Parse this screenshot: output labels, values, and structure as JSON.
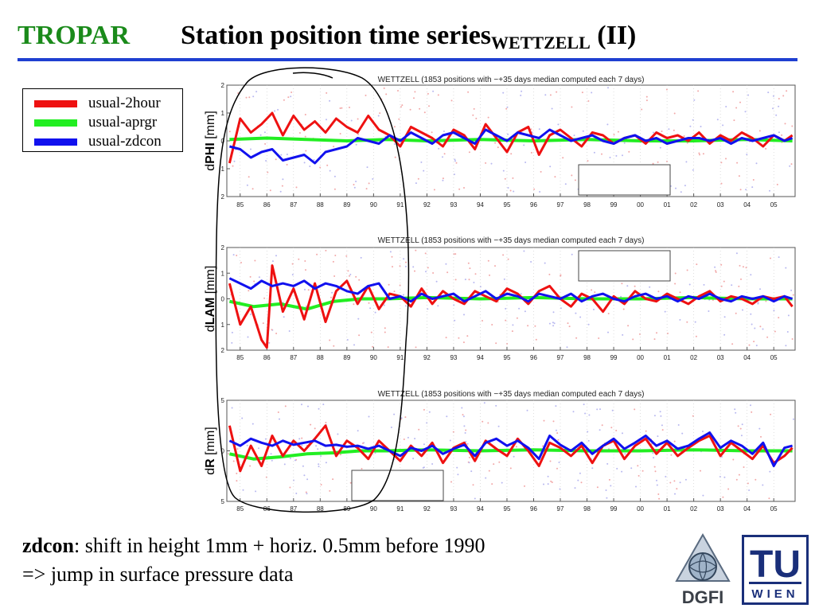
{
  "slide": {
    "brand": "TROPAR",
    "title_main": "Station position time series",
    "title_sub": "WETTZELL",
    "title_suffix": " (II)",
    "caption_bold": "zdcon",
    "caption_line1_rest": ": shift in height 1mm + horiz. 0.5mm before 1990",
    "caption_line2": "=> jump in surface pressure data"
  },
  "legend": [
    {
      "label": "usual-2hour",
      "color": "#ee1111"
    },
    {
      "label": "usual-aprgr",
      "color": "#22ee22"
    },
    {
      "label": "usual-zdcon",
      "color": "#1111ee"
    }
  ],
  "logos": {
    "dgfi": "DGFI",
    "tu_top": "TU",
    "tu_bottom": "WIEN"
  },
  "colors": {
    "brand": "#1a8a1a",
    "rule": "#1f3fd1",
    "tu": "#1a2f7a"
  },
  "chart_data": [
    {
      "type": "line",
      "title": "WETTZELL (1853 positions with −+35 days median computed each 7 days)",
      "ylabel_prefix": "d",
      "ylabel_bold": "PHI",
      "ylabel_unit": " [mm]",
      "xticks": [
        "85",
        "86",
        "87",
        "88",
        "89",
        "90",
        "91",
        "92",
        "93",
        "94",
        "95",
        "96",
        "97",
        "98",
        "99",
        "00",
        "01",
        "02",
        "03",
        "04",
        "05"
      ],
      "yticks": [
        "2",
        "1",
        "0",
        "1",
        "2"
      ],
      "ylim": [
        -2,
        2
      ],
      "xlim": [
        1984.5,
        2005.8
      ],
      "series": [
        {
          "name": "usual-2hour",
          "color": "#ee1111",
          "x": [
            1984.6,
            1985.0,
            1985.4,
            1985.8,
            1986.2,
            1986.6,
            1987.0,
            1987.4,
            1987.8,
            1988.2,
            1988.6,
            1989.0,
            1989.4,
            1989.8,
            1990.2,
            1990.6,
            1991.0,
            1991.4,
            1991.8,
            1992.2,
            1992.6,
            1993.0,
            1993.4,
            1993.8,
            1994.2,
            1994.6,
            1995.0,
            1995.4,
            1995.8,
            1996.2,
            1996.6,
            1997.0,
            1997.4,
            1997.8,
            1998.2,
            1998.6,
            1999.0,
            1999.4,
            1999.8,
            2000.2,
            2000.6,
            2001.0,
            2001.4,
            2001.8,
            2002.2,
            2002.6,
            2003.0,
            2003.4,
            2003.8,
            2004.2,
            2004.6,
            2005.0,
            2005.4,
            2005.7
          ],
          "values": [
            -0.8,
            0.8,
            0.3,
            0.6,
            1.0,
            0.2,
            0.9,
            0.4,
            0.7,
            0.3,
            0.8,
            0.5,
            0.3,
            0.9,
            0.4,
            0.2,
            -0.2,
            0.5,
            0.3,
            0.1,
            -0.2,
            0.4,
            0.2,
            -0.3,
            0.6,
            0.1,
            -0.4,
            0.3,
            0.5,
            -0.5,
            0.2,
            0.4,
            0.1,
            -0.2,
            0.3,
            0.2,
            -0.1,
            0.1,
            0.2,
            -0.1,
            0.3,
            0.1,
            0.2,
            0.0,
            0.3,
            -0.1,
            0.2,
            0.0,
            0.3,
            0.1,
            -0.2,
            0.2,
            0.0,
            0.2
          ]
        },
        {
          "name": "usual-aprgr",
          "color": "#22ee22",
          "x": [
            1984.6,
            1986.0,
            1987.5,
            1989.0,
            1990.5,
            1992.0,
            1994.0,
            1996.0,
            1998.0,
            2000.0,
            2002.0,
            2004.0,
            2005.7
          ],
          "values": [
            0.05,
            0.1,
            0.05,
            0.0,
            0.05,
            0.0,
            0.05,
            0.0,
            0.05,
            0.0,
            0.0,
            0.05,
            0.0
          ]
        },
        {
          "name": "usual-zdcon",
          "color": "#1111ee",
          "x": [
            1984.6,
            1985.0,
            1985.4,
            1985.8,
            1986.2,
            1986.6,
            1987.0,
            1987.4,
            1987.8,
            1988.2,
            1988.6,
            1989.0,
            1989.4,
            1989.8,
            1990.2,
            1990.6,
            1991.0,
            1991.4,
            1991.8,
            1992.2,
            1992.6,
            1993.0,
            1993.4,
            1993.8,
            1994.2,
            1994.6,
            1995.0,
            1995.4,
            1995.8,
            1996.2,
            1996.6,
            1997.0,
            1997.4,
            1997.8,
            1998.2,
            1998.6,
            1999.0,
            1999.4,
            1999.8,
            2000.2,
            2000.6,
            2001.0,
            2001.4,
            2001.8,
            2002.2,
            2002.6,
            2003.0,
            2003.4,
            2003.8,
            2004.2,
            2004.6,
            2005.0,
            2005.4,
            2005.7
          ],
          "values": [
            -0.2,
            -0.3,
            -0.6,
            -0.4,
            -0.3,
            -0.7,
            -0.6,
            -0.5,
            -0.8,
            -0.4,
            -0.3,
            -0.2,
            0.1,
            0.0,
            -0.1,
            0.2,
            0.0,
            0.3,
            0.1,
            -0.1,
            0.2,
            0.3,
            0.1,
            -0.1,
            0.4,
            0.2,
            0.0,
            0.3,
            0.2,
            0.1,
            0.4,
            0.2,
            0.0,
            0.1,
            0.2,
            0.0,
            -0.1,
            0.1,
            0.2,
            0.0,
            0.1,
            -0.1,
            0.0,
            0.1,
            0.1,
            0.0,
            0.1,
            -0.1,
            0.1,
            0.0,
            0.1,
            0.2,
            0.0,
            0.1
          ]
        }
      ]
    },
    {
      "type": "line",
      "title": "WETTZELL (1853 positions with −+35 days median computed each 7 days)",
      "ylabel_prefix": "d",
      "ylabel_bold": "LAM",
      "ylabel_unit": " [mm]",
      "xticks": [
        "85",
        "86",
        "87",
        "88",
        "89",
        "90",
        "91",
        "92",
        "93",
        "94",
        "95",
        "96",
        "97",
        "98",
        "99",
        "00",
        "01",
        "02",
        "03",
        "04",
        "05"
      ],
      "yticks": [
        "2",
        "1",
        "0",
        "1",
        "2"
      ],
      "ylim": [
        -2,
        2
      ],
      "xlim": [
        1984.5,
        2005.8
      ],
      "series": [
        {
          "name": "usual-2hour",
          "color": "#ee1111",
          "x": [
            1984.6,
            1985.0,
            1985.4,
            1985.8,
            1986.0,
            1986.2,
            1986.6,
            1987.0,
            1987.4,
            1987.8,
            1988.2,
            1988.6,
            1989.0,
            1989.4,
            1989.8,
            1990.2,
            1990.6,
            1991.0,
            1991.4,
            1991.8,
            1992.2,
            1992.6,
            1993.0,
            1993.4,
            1993.8,
            1994.2,
            1994.6,
            1995.0,
            1995.4,
            1995.8,
            1996.2,
            1996.6,
            1997.0,
            1997.4,
            1997.8,
            1998.2,
            1998.6,
            1999.0,
            1999.4,
            1999.8,
            2000.2,
            2000.6,
            2001.0,
            2001.4,
            2001.8,
            2002.2,
            2002.6,
            2003.0,
            2003.4,
            2003.8,
            2004.2,
            2004.6,
            2005.0,
            2005.4,
            2005.7
          ],
          "values": [
            0.6,
            -1.0,
            -0.3,
            -1.6,
            -1.9,
            1.3,
            -0.5,
            0.4,
            -0.8,
            0.6,
            -0.9,
            0.3,
            0.7,
            -0.2,
            0.5,
            -0.4,
            0.2,
            0.1,
            -0.3,
            0.4,
            -0.2,
            0.3,
            0.0,
            -0.2,
            0.3,
            0.1,
            -0.1,
            0.4,
            0.2,
            -0.2,
            0.3,
            0.5,
            0.0,
            -0.3,
            0.2,
            0.0,
            -0.5,
            0.1,
            -0.2,
            0.3,
            0.0,
            -0.1,
            0.2,
            0.0,
            -0.2,
            0.1,
            0.3,
            -0.1,
            0.1,
            0.0,
            -0.2,
            0.1,
            0.0,
            0.1,
            -0.3
          ]
        },
        {
          "name": "usual-aprgr",
          "color": "#22ee22",
          "x": [
            1984.6,
            1985.5,
            1986.5,
            1987.5,
            1988.5,
            1989.5,
            1990.5,
            1992.0,
            1994.0,
            1996.0,
            1998.0,
            2000.0,
            2002.0,
            2004.0,
            2005.7
          ],
          "values": [
            -0.1,
            -0.3,
            -0.2,
            -0.4,
            -0.1,
            0.0,
            0.0,
            0.05,
            0.0,
            0.05,
            0.0,
            0.0,
            0.05,
            0.0,
            0.0
          ]
        },
        {
          "name": "usual-zdcon",
          "color": "#1111ee",
          "x": [
            1984.6,
            1985.0,
            1985.4,
            1985.8,
            1986.2,
            1986.6,
            1987.0,
            1987.4,
            1987.8,
            1988.2,
            1988.6,
            1989.0,
            1989.4,
            1989.8,
            1990.2,
            1990.6,
            1991.0,
            1991.4,
            1991.8,
            1992.2,
            1992.6,
            1993.0,
            1993.4,
            1993.8,
            1994.2,
            1994.6,
            1995.0,
            1995.4,
            1995.8,
            1996.2,
            1996.6,
            1997.0,
            1997.4,
            1997.8,
            1998.2,
            1998.6,
            1999.0,
            1999.4,
            1999.8,
            2000.2,
            2000.6,
            2001.0,
            2001.4,
            2001.8,
            2002.2,
            2002.6,
            2003.0,
            2003.4,
            2003.8,
            2004.2,
            2004.6,
            2005.0,
            2005.4,
            2005.7
          ],
          "values": [
            0.8,
            0.6,
            0.4,
            0.7,
            0.5,
            0.6,
            0.5,
            0.7,
            0.4,
            0.6,
            0.5,
            0.3,
            0.2,
            0.5,
            0.6,
            0.0,
            0.1,
            -0.1,
            0.2,
            0.0,
            0.1,
            0.2,
            -0.1,
            0.1,
            0.3,
            0.0,
            0.2,
            0.1,
            -0.1,
            0.2,
            0.1,
            0.0,
            0.2,
            -0.1,
            0.1,
            0.2,
            0.0,
            -0.1,
            0.1,
            0.2,
            0.0,
            0.1,
            -0.1,
            0.1,
            0.0,
            0.2,
            0.0,
            -0.1,
            0.1,
            0.0,
            0.1,
            -0.1,
            0.1,
            0.0
          ]
        }
      ]
    },
    {
      "type": "line",
      "title": "WETTZELL (1853 positions with −+35 days median computed each 7 days)",
      "ylabel_prefix": "d",
      "ylabel_bold": "R",
      "ylabel_unit": " [mm]",
      "xticks": [
        "85",
        "86",
        "87",
        "88",
        "89",
        "90",
        "91",
        "92",
        "93",
        "94",
        "95",
        "96",
        "97",
        "98",
        "99",
        "00",
        "01",
        "02",
        "03",
        "04",
        "05"
      ],
      "yticks": [
        "5",
        "0",
        "5"
      ],
      "ylim": [
        -5,
        5
      ],
      "xlim": [
        1984.5,
        2005.8
      ],
      "series": [
        {
          "name": "usual-2hour",
          "color": "#ee1111",
          "x": [
            1984.6,
            1985.0,
            1985.4,
            1985.8,
            1986.2,
            1986.6,
            1987.0,
            1987.4,
            1987.8,
            1988.2,
            1988.6,
            1989.0,
            1989.4,
            1989.8,
            1990.2,
            1990.6,
            1991.0,
            1991.4,
            1991.8,
            1992.2,
            1992.6,
            1993.0,
            1993.4,
            1993.8,
            1994.2,
            1994.6,
            1995.0,
            1995.4,
            1995.8,
            1996.2,
            1996.6,
            1997.0,
            1997.4,
            1997.8,
            1998.2,
            1998.6,
            1999.0,
            1999.4,
            1999.8,
            2000.2,
            2000.6,
            2001.0,
            2001.4,
            2001.8,
            2002.2,
            2002.6,
            2003.0,
            2003.4,
            2003.8,
            2004.2,
            2004.6,
            2005.0,
            2005.4,
            2005.7
          ],
          "values": [
            2.5,
            -2.0,
            0.5,
            -1.5,
            1.5,
            -0.5,
            1.0,
            0.0,
            1.2,
            2.5,
            -0.5,
            1.0,
            0.3,
            -0.8,
            1.0,
            0.0,
            -1.0,
            0.5,
            -0.5,
            0.8,
            -1.2,
            0.3,
            0.8,
            -1.0,
            1.0,
            0.2,
            -0.5,
            1.2,
            0.0,
            -1.5,
            0.8,
            0.3,
            -0.5,
            0.5,
            -1.2,
            0.5,
            1.0,
            -0.8,
            0.5,
            1.2,
            -0.3,
            0.8,
            -0.5,
            0.3,
            1.0,
            1.5,
            -0.5,
            0.8,
            0.0,
            -0.8,
            0.5,
            -1.2,
            -0.5,
            0.3
          ]
        },
        {
          "name": "usual-aprgr",
          "color": "#22ee22",
          "x": [
            1984.6,
            1985.5,
            1986.5,
            1987.5,
            1988.5,
            1989.5,
            1990.5,
            1992.0,
            1994.0,
            1996.0,
            1998.0,
            2000.0,
            2002.0,
            2004.0,
            2005.7
          ],
          "values": [
            -0.3,
            -0.8,
            -0.6,
            -0.3,
            -0.2,
            0.0,
            0.0,
            0.1,
            0.0,
            0.1,
            0.0,
            0.0,
            0.1,
            0.0,
            0.0
          ]
        },
        {
          "name": "usual-zdcon",
          "color": "#1111ee",
          "x": [
            1984.6,
            1985.0,
            1985.4,
            1985.8,
            1986.2,
            1986.6,
            1987.0,
            1987.4,
            1987.8,
            1988.2,
            1988.6,
            1989.0,
            1989.4,
            1989.8,
            1990.2,
            1990.6,
            1991.0,
            1991.4,
            1991.8,
            1992.2,
            1992.6,
            1993.0,
            1993.4,
            1993.8,
            1994.2,
            1994.6,
            1995.0,
            1995.4,
            1995.8,
            1996.2,
            1996.6,
            1997.0,
            1997.4,
            1997.8,
            1998.2,
            1998.6,
            1999.0,
            1999.4,
            1999.8,
            2000.2,
            2000.6,
            2001.0,
            2001.4,
            2001.8,
            2002.2,
            2002.6,
            2003.0,
            2003.4,
            2003.8,
            2004.2,
            2004.6,
            2005.0,
            2005.4,
            2005.7
          ],
          "values": [
            1.0,
            0.5,
            1.2,
            0.8,
            0.5,
            1.0,
            0.6,
            0.8,
            1.0,
            0.5,
            0.6,
            0.4,
            0.5,
            0.2,
            0.5,
            0.0,
            -0.5,
            0.3,
            0.0,
            0.5,
            -0.3,
            0.2,
            0.6,
            -0.5,
            0.8,
            1.2,
            0.5,
            1.0,
            0.3,
            -0.8,
            1.5,
            0.6,
            0.0,
            0.8,
            -0.3,
            0.5,
            1.2,
            0.2,
            0.8,
            1.5,
            0.5,
            1.0,
            0.2,
            0.5,
            1.2,
            1.8,
            0.3,
            1.0,
            0.5,
            -0.3,
            0.8,
            -1.5,
            0.3,
            0.5
          ]
        }
      ]
    }
  ]
}
